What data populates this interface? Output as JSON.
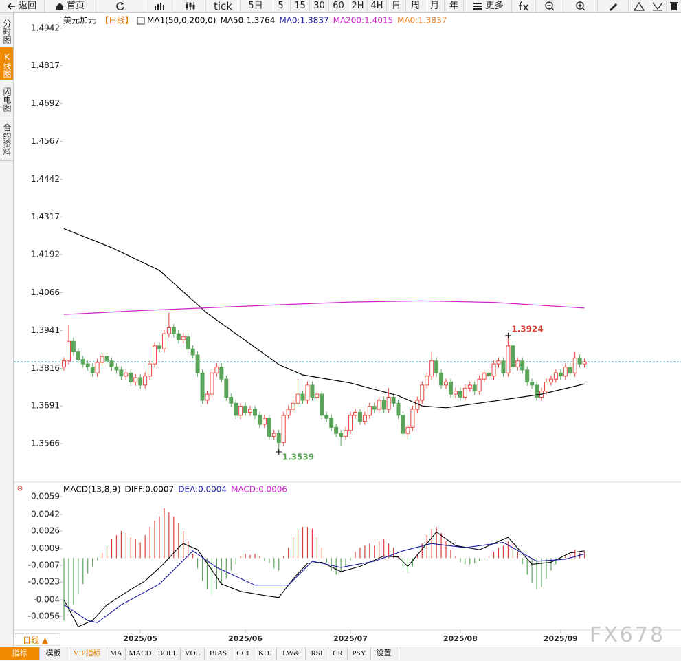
{
  "toolbar": {
    "back": "返回",
    "home": "首页",
    "tick": "tick",
    "periods": [
      "5日",
      "5",
      "15",
      "30",
      "60",
      "2H",
      "4H",
      "日",
      "周",
      "月",
      "年"
    ],
    "more": "更多"
  },
  "sidebar": {
    "tabs": [
      "分时图",
      "K线图",
      "闪电图",
      "合约资料"
    ],
    "active": 1
  },
  "period_button": "日线 ▲",
  "bottom_bar": {
    "tabs": [
      "指标",
      "模板",
      "VIP指标",
      "MA",
      "MACD",
      "BOLL",
      "VOL",
      "BIAS",
      "CCI",
      "KDJ",
      "LW&",
      "RSI",
      "CR",
      "PSY",
      "设置"
    ],
    "active": 0,
    "highlight": 2
  },
  "watermark": "FX678",
  "chart_data": [
    {
      "type": "candlestick",
      "header_items": [
        {
          "text": "美元加元",
          "color": "#000000"
        },
        {
          "text": "【日线】",
          "color": "#e07b00"
        },
        {
          "text": "MA1(50,0,200,0)",
          "color": "#000000"
        },
        {
          "text": "MA50:1.3764",
          "color": "#000000"
        },
        {
          "text": "MA0:1.3837",
          "color": "#1a1aa0"
        },
        {
          "text": "MA200:1.4015",
          "color": "#d020d0"
        },
        {
          "text": "MA0:1.3837",
          "color": "#f08020"
        }
      ],
      "xlim": [
        -10.5,
        129.2
      ],
      "ylim": [
        1.3441,
        1.4994
      ],
      "yticks": [
        1.4942,
        1.4817,
        1.4692,
        1.4567,
        1.4442,
        1.4317,
        1.4192,
        1.4066,
        1.3941,
        1.3816,
        1.3691,
        1.3566
      ],
      "up_color": "#e8453c",
      "down_color": "#5aa55a",
      "ohlc": [
        [
          1.382,
          1.3852,
          1.3808,
          1.384
        ],
        [
          1.384,
          1.396,
          1.3828,
          1.3905
        ],
        [
          1.3905,
          1.3917,
          1.3858,
          1.387
        ],
        [
          1.387,
          1.3882,
          1.3833,
          1.3845
        ],
        [
          1.3845,
          1.3857,
          1.3818,
          1.383
        ],
        [
          1.383,
          1.3842,
          1.3808,
          1.382
        ],
        [
          1.382,
          1.3832,
          1.3788,
          1.38
        ],
        [
          1.38,
          1.3847,
          1.3788,
          1.3835
        ],
        [
          1.3835,
          1.3867,
          1.3823,
          1.3855
        ],
        [
          1.3855,
          1.3867,
          1.3828,
          1.384
        ],
        [
          1.384,
          1.3852,
          1.3808,
          1.382
        ],
        [
          1.382,
          1.3832,
          1.3798,
          1.381
        ],
        [
          1.381,
          1.3822,
          1.3778,
          1.379
        ],
        [
          1.379,
          1.3812,
          1.3778,
          1.38
        ],
        [
          1.38,
          1.3812,
          1.3758,
          1.377
        ],
        [
          1.377,
          1.3797,
          1.3758,
          1.3785
        ],
        [
          1.3785,
          1.3797,
          1.3748,
          1.376
        ],
        [
          1.376,
          1.3802,
          1.3748,
          1.379
        ],
        [
          1.379,
          1.3842,
          1.3778,
          1.383
        ],
        [
          1.383,
          1.3902,
          1.3818,
          1.389
        ],
        [
          1.389,
          1.3902,
          1.3868,
          1.388
        ],
        [
          1.388,
          1.3942,
          1.3868,
          1.393
        ],
        [
          1.393,
          1.4,
          1.3918,
          1.395
        ],
        [
          1.395,
          1.3962,
          1.3918,
          1.393
        ],
        [
          1.393,
          1.3942,
          1.3898,
          1.391
        ],
        [
          1.391,
          1.3932,
          1.3898,
          1.392
        ],
        [
          1.392,
          1.3932,
          1.3868,
          1.388
        ],
        [
          1.388,
          1.3892,
          1.3848,
          1.386
        ],
        [
          1.386,
          1.3872,
          1.3788,
          1.38
        ],
        [
          1.38,
          1.3812,
          1.3698,
          1.371
        ],
        [
          1.371,
          1.3742,
          1.3698,
          1.373
        ],
        [
          1.373,
          1.3812,
          1.3718,
          1.38
        ],
        [
          1.38,
          1.3832,
          1.3788,
          1.382
        ],
        [
          1.382,
          1.3832,
          1.3768,
          1.378
        ],
        [
          1.378,
          1.3792,
          1.3708,
          1.372
        ],
        [
          1.372,
          1.3732,
          1.3688,
          1.37
        ],
        [
          1.37,
          1.3712,
          1.3648,
          1.366
        ],
        [
          1.366,
          1.3702,
          1.3648,
          1.369
        ],
        [
          1.369,
          1.3702,
          1.3658,
          1.367
        ],
        [
          1.367,
          1.3692,
          1.3658,
          1.368
        ],
        [
          1.368,
          1.3692,
          1.3648,
          1.366
        ],
        [
          1.366,
          1.3672,
          1.3618,
          1.363
        ],
        [
          1.363,
          1.3662,
          1.3618,
          1.365
        ],
        [
          1.365,
          1.3662,
          1.3578,
          1.359
        ],
        [
          1.359,
          1.3612,
          1.3578,
          1.36
        ],
        [
          1.36,
          1.3612,
          1.3539,
          1.357
        ],
        [
          1.357,
          1.3672,
          1.3558,
          1.366
        ],
        [
          1.366,
          1.3692,
          1.3648,
          1.368
        ],
        [
          1.368,
          1.3712,
          1.3668,
          1.37
        ],
        [
          1.37,
          1.378,
          1.3688,
          1.373
        ],
        [
          1.373,
          1.3742,
          1.3698,
          1.371
        ],
        [
          1.371,
          1.3772,
          1.3698,
          1.376
        ],
        [
          1.376,
          1.3772,
          1.3708,
          1.372
        ],
        [
          1.372,
          1.3742,
          1.3708,
          1.373
        ],
        [
          1.373,
          1.3742,
          1.3648,
          1.366
        ],
        [
          1.366,
          1.3672,
          1.3638,
          1.365
        ],
        [
          1.365,
          1.3662,
          1.3608,
          1.362
        ],
        [
          1.362,
          1.3632,
          1.3588,
          1.36
        ],
        [
          1.36,
          1.3612,
          1.356,
          1.359
        ],
        [
          1.359,
          1.3622,
          1.3578,
          1.361
        ],
        [
          1.361,
          1.3672,
          1.3598,
          1.366
        ],
        [
          1.366,
          1.3682,
          1.3648,
          1.367
        ],
        [
          1.367,
          1.3682,
          1.3628,
          1.364
        ],
        [
          1.364,
          1.3672,
          1.3628,
          1.366
        ],
        [
          1.366,
          1.3702,
          1.3648,
          1.369
        ],
        [
          1.369,
          1.3702,
          1.3668,
          1.368
        ],
        [
          1.368,
          1.3722,
          1.3668,
          1.371
        ],
        [
          1.371,
          1.3722,
          1.3668,
          1.368
        ],
        [
          1.368,
          1.375,
          1.3668,
          1.372
        ],
        [
          1.372,
          1.3732,
          1.3688,
          1.37
        ],
        [
          1.37,
          1.3712,
          1.3648,
          1.366
        ],
        [
          1.366,
          1.3672,
          1.3588,
          1.36
        ],
        [
          1.36,
          1.3632,
          1.358,
          1.362
        ],
        [
          1.362,
          1.3692,
          1.3608,
          1.368
        ],
        [
          1.368,
          1.3722,
          1.3668,
          1.371
        ],
        [
          1.371,
          1.3772,
          1.3698,
          1.376
        ],
        [
          1.376,
          1.3802,
          1.3748,
          1.379
        ],
        [
          1.379,
          1.387,
          1.3778,
          1.384
        ],
        [
          1.384,
          1.3852,
          1.3788,
          1.38
        ],
        [
          1.38,
          1.3812,
          1.3748,
          1.376
        ],
        [
          1.376,
          1.3782,
          1.3748,
          1.377
        ],
        [
          1.377,
          1.3782,
          1.3718,
          1.373
        ],
        [
          1.373,
          1.3752,
          1.3718,
          1.374
        ],
        [
          1.374,
          1.3752,
          1.3708,
          1.372
        ],
        [
          1.372,
          1.3762,
          1.3708,
          1.375
        ],
        [
          1.375,
          1.3772,
          1.3738,
          1.376
        ],
        [
          1.376,
          1.3772,
          1.3728,
          1.374
        ],
        [
          1.374,
          1.3792,
          1.3728,
          1.378
        ],
        [
          1.378,
          1.3812,
          1.3768,
          1.38
        ],
        [
          1.38,
          1.3812,
          1.3778,
          1.379
        ],
        [
          1.379,
          1.3842,
          1.3778,
          1.383
        ],
        [
          1.383,
          1.3852,
          1.3818,
          1.384
        ],
        [
          1.384,
          1.3852,
          1.3788,
          1.38
        ],
        [
          1.38,
          1.3924,
          1.3788,
          1.389
        ],
        [
          1.389,
          1.3902,
          1.3808,
          1.382
        ],
        [
          1.382,
          1.3852,
          1.3808,
          1.384
        ],
        [
          1.384,
          1.3852,
          1.3798,
          1.381
        ],
        [
          1.381,
          1.3822,
          1.3758,
          1.377
        ],
        [
          1.377,
          1.3782,
          1.3748,
          1.376
        ],
        [
          1.376,
          1.3772,
          1.3708,
          1.372
        ],
        [
          1.372,
          1.3752,
          1.3708,
          1.374
        ],
        [
          1.374,
          1.3782,
          1.3728,
          1.377
        ],
        [
          1.377,
          1.3792,
          1.3758,
          1.378
        ],
        [
          1.378,
          1.3812,
          1.3768,
          1.38
        ],
        [
          1.38,
          1.3812,
          1.3778,
          1.379
        ],
        [
          1.379,
          1.3832,
          1.3778,
          1.382
        ],
        [
          1.382,
          1.3832,
          1.3788,
          1.38
        ],
        [
          1.38,
          1.387,
          1.3788,
          1.385
        ],
        [
          1.385,
          1.3862,
          1.3818,
          1.383
        ],
        [
          1.383,
          1.3849,
          1.3818,
          1.3837
        ]
      ],
      "series": [
        {
          "color": "#000000",
          "x": [
            0,
            10,
            20,
            30,
            40,
            45,
            50,
            60,
            70,
            75,
            80,
            90,
            100,
            109
          ],
          "values": [
            1.4278,
            1.4215,
            1.414,
            1.3998,
            1.3885,
            1.3828,
            1.3794,
            1.3767,
            1.3725,
            1.3691,
            1.3685,
            1.3707,
            1.373,
            1.3764
          ]
        },
        {
          "color": "#d020d0",
          "x": [
            0,
            15,
            30,
            45,
            60,
            75,
            90,
            109
          ],
          "values": [
            1.3994,
            1.4006,
            1.4016,
            1.4026,
            1.4035,
            1.4039,
            1.4034,
            1.4015
          ]
        }
      ],
      "reference_line": {
        "value": 1.3837,
        "color": "#2a8fa8"
      },
      "annotations": [
        {
          "x": 93,
          "value": 1.3924,
          "color": "#d9403a"
        },
        {
          "x": 45,
          "value": 1.3539,
          "color": "#5aa55a"
        }
      ]
    },
    {
      "type": "macd",
      "header_items": [
        {
          "text": "MACD(13,8,9)",
          "color": "#000000"
        },
        {
          "text": "DIFF:0.0007",
          "color": "#000000"
        },
        {
          "text": "DEA:0.0004",
          "color": "#1a1aa0"
        },
        {
          "text": "MACD:0.0006",
          "color": "#d020d0"
        }
      ],
      "xlim": [
        -10.5,
        129.2
      ],
      "ylim": [
        -0.00685,
        0.00716
      ],
      "yticks": [
        0.0059,
        0.0042,
        0.0026,
        0.0009,
        -0.0007,
        -0.0023,
        -0.004,
        -0.0056
      ],
      "xticks": [
        {
          "value": 16,
          "label": "2025/05"
        },
        {
          "value": 38,
          "label": "2025/06"
        },
        {
          "value": 60,
          "label": "2025/07"
        },
        {
          "value": 83,
          "label": "2025/08"
        },
        {
          "value": 104,
          "label": "2025/09"
        }
      ],
      "up_color": "#d9403a",
      "down_color": "#5aa55a",
      "histogram": [
        -0.006,
        -0.0052,
        -0.0045,
        -0.0035,
        -0.0025,
        -0.0015,
        -0.0008,
        -0.0002,
        0.0005,
        0.0012,
        0.0018,
        0.0022,
        0.0026,
        0.0024,
        0.002,
        0.0018,
        0.0015,
        0.0022,
        0.003,
        0.0036,
        0.004,
        0.0048,
        0.0044,
        0.004,
        0.0034,
        0.0026,
        0.0016,
        0.0004,
        -0.001,
        -0.0022,
        -0.003,
        -0.0035,
        -0.003,
        -0.0026,
        -0.002,
        -0.0012,
        -0.0006,
        0.0002,
        0.0004,
        0.0003,
        0.0004,
        0.0002,
        -0.0003,
        -0.0005,
        -0.001,
        -0.0012,
        0.0002,
        0.001,
        0.002,
        0.0028,
        0.003,
        0.003,
        0.0028,
        0.002,
        0.001,
        -0.0005,
        -0.0012,
        -0.0016,
        -0.0014,
        -0.0008,
        -0.0002,
        0.0006,
        0.001,
        0.0012,
        0.0014,
        0.0012,
        0.0016,
        0.0018,
        0.0014,
        0.001,
        0.0002,
        -0.001,
        -0.0014,
        -0.0008,
        0.0004,
        0.0014,
        0.0022,
        0.0028,
        0.003,
        0.0024,
        0.0016,
        0.0008,
        0.0002,
        -0.0004,
        -0.0006,
        -0.0006,
        -0.0005,
        -0.0003,
        -0.0002,
        0.0002,
        0.0006,
        0.001,
        0.0012,
        0.0016,
        0.0014,
        0.0006,
        -0.0006,
        -0.0016,
        -0.0024,
        -0.003,
        -0.0028,
        -0.002,
        -0.0012,
        -0.0006,
        -0.0002,
        0.0002,
        0.0004,
        0.0008,
        0.0005,
        0.0006
      ],
      "series": [
        {
          "color": "#000000",
          "x": [
            0,
            3,
            6,
            9,
            13,
            17,
            21,
            24,
            25,
            28,
            30,
            33,
            37,
            42,
            45,
            48,
            51,
            54,
            58,
            62,
            67,
            70,
            72,
            78,
            82,
            87,
            93,
            98,
            102,
            106,
            109
          ],
          "values": [
            -0.004,
            -0.0066,
            -0.006,
            -0.0045,
            -0.0033,
            -0.0022,
            -0.0005,
            0.001,
            0.0014,
            0.0008,
            -0.0005,
            -0.0025,
            -0.0032,
            -0.0036,
            -0.0038,
            -0.002,
            -0.0005,
            -0.0004,
            -0.0013,
            -0.0008,
            0.0002,
            0.0001,
            -0.0008,
            0.0025,
            0.0012,
            0.0008,
            0.002,
            -0.0006,
            -0.0004,
            0.0005,
            0.0007
          ]
        },
        {
          "color": "#1a1aa0",
          "x": [
            0,
            5,
            7,
            12,
            20,
            27,
            32,
            40,
            47,
            52,
            58,
            65,
            71,
            77,
            84,
            92,
            99,
            105,
            109
          ],
          "values": [
            -0.0045,
            -0.006,
            -0.0062,
            -0.0045,
            -0.0025,
            0.0007,
            -0.0009,
            -0.0026,
            -0.0026,
            -0.0003,
            -0.0009,
            -0.0003,
            0.0007,
            0.0014,
            0.001,
            0.0015,
            -0.0003,
            -0.0001,
            0.0004
          ]
        }
      ]
    }
  ]
}
